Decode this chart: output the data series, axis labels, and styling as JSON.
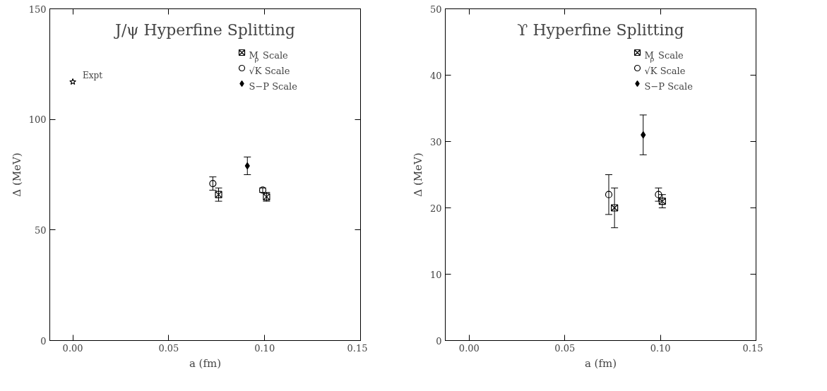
{
  "chart_data": [
    {
      "type": "scatter",
      "title": "J/ψ Hyperfine Splitting",
      "xlabel": "a (fm)",
      "ylabel": "Δ (MeV)",
      "xlim": [
        -0.012,
        0.15
      ],
      "ylim": [
        0,
        150
      ],
      "xticks": [
        {
          "value": 0,
          "label": "0.00"
        },
        {
          "value": 0.05,
          "label": "0.05"
        },
        {
          "value": 0.1,
          "label": "0.10"
        },
        {
          "value": 0.15,
          "label": "0.15"
        }
      ],
      "yticks": [
        0,
        50,
        100,
        150
      ],
      "grid": false,
      "legend": "top right",
      "annotations": [
        {
          "text": "Expt",
          "x": 0.0,
          "y": 117
        }
      ],
      "series": [
        {
          "name": "M$_{ρ}$ Scale",
          "color": "#000000",
          "marker": "cross",
          "x": [
            0.076,
            0.101
          ],
          "values": [
            66,
            65
          ],
          "errors": [
            3,
            2
          ]
        },
        {
          "name": "√K Scale",
          "color": "#000000",
          "marker": "circle",
          "x": [
            0.073,
            0.099
          ],
          "values": [
            71,
            68
          ],
          "errors": [
            3,
            1
          ]
        },
        {
          "name": "S−P Scale",
          "color": "#000000",
          "marker": "diamond",
          "x": [
            0.091
          ],
          "values": [
            79
          ],
          "errors": [
            4
          ]
        },
        {
          "color": "#000000",
          "marker": "star",
          "x": [
            0.0
          ],
          "values": [
            117
          ]
        }
      ]
    },
    {
      "type": "scatter",
      "title": "ϒ Hyperfine Splitting",
      "xlabel": "a (fm)",
      "ylabel": "Δ (MeV)",
      "xlim": [
        -0.0125,
        0.15
      ],
      "ylim": [
        0,
        50
      ],
      "xticks": [
        {
          "value": 0,
          "label": "0.00"
        },
        {
          "value": 0.05,
          "label": "0.05"
        },
        {
          "value": 0.1,
          "label": "0.10"
        },
        {
          "value": 0.15,
          "label": "0.15"
        }
      ],
      "yticks": [
        0,
        10,
        20,
        30,
        40,
        50
      ],
      "grid": false,
      "legend": "top right",
      "series": [
        {
          "name": "M$_{ρ}$ Scale",
          "color": "#000000",
          "marker": "cross",
          "x": [
            0.076,
            0.101
          ],
          "values": [
            20,
            21
          ],
          "errors": [
            3,
            1
          ]
        },
        {
          "name": "√K Scale",
          "color": "#000000",
          "marker": "circle",
          "x": [
            0.073,
            0.099
          ],
          "values": [
            22,
            22
          ],
          "errors": [
            3,
            1
          ]
        },
        {
          "name": "S−P Scale",
          "color": "#000000",
          "marker": "diamond",
          "x": [
            0.091
          ],
          "values": [
            31
          ],
          "errors": [
            3
          ]
        }
      ]
    }
  ]
}
